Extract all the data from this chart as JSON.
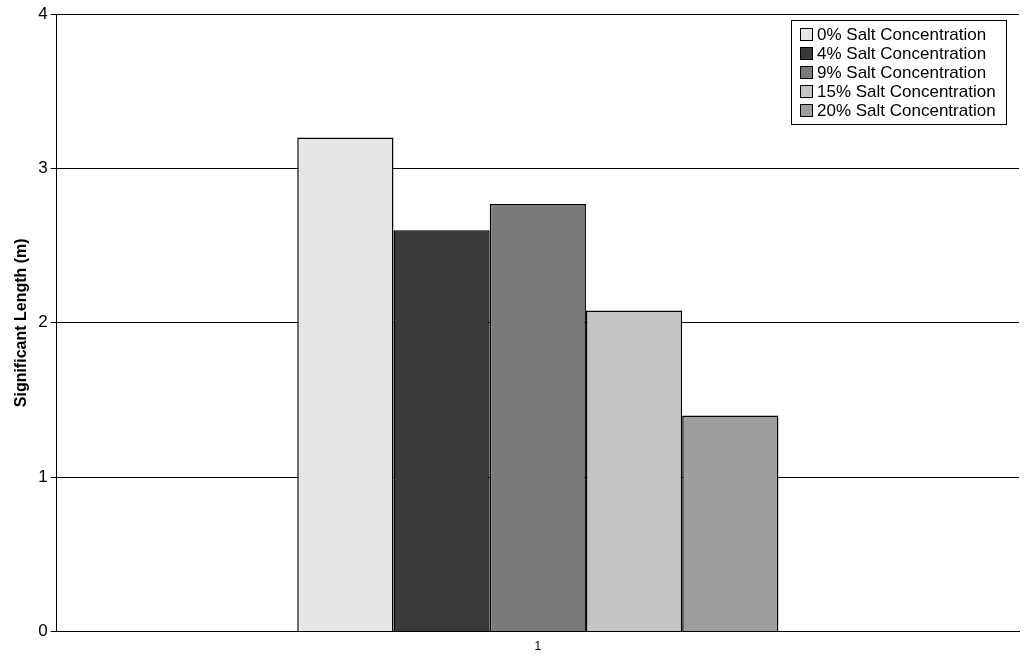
{
  "chart_data": {
    "type": "bar",
    "ylabel": "Significant Length (m)",
    "categories": [
      "1"
    ],
    "series": [
      {
        "name": "0% Salt Concentration",
        "color": "#e6e6e6",
        "values": [
          3.2
        ]
      },
      {
        "name": "4% Salt Concentration",
        "color": "#3a3a3a",
        "values": [
          2.6
        ]
      },
      {
        "name": "9% Salt Concentration",
        "color": "#7a7a7a",
        "values": [
          2.77
        ]
      },
      {
        "name": "15% Salt Concentration",
        "color": "#c4c4c4",
        "values": [
          2.08
        ]
      },
      {
        "name": "20% Salt Concentration",
        "color": "#9e9e9e",
        "values": [
          1.4
        ]
      }
    ],
    "ylim": [
      0,
      4
    ],
    "yticks": [
      0,
      1,
      2,
      3,
      4
    ],
    "grid": "y",
    "legend": "top right"
  }
}
